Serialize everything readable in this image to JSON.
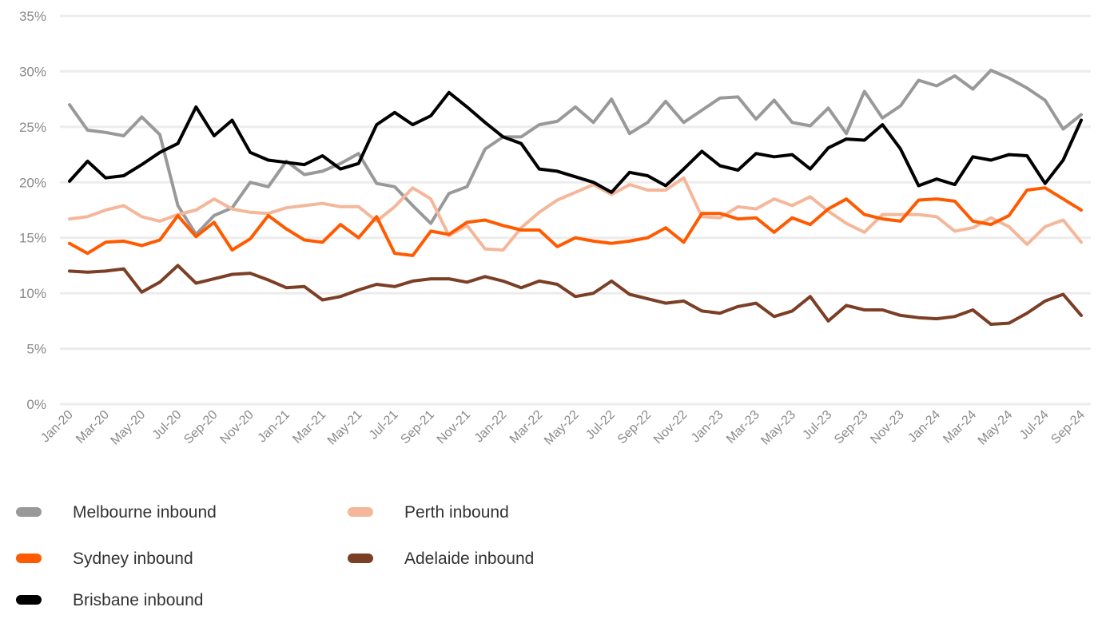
{
  "chart_data": {
    "type": "line",
    "title": "",
    "xlabel": "",
    "ylabel": "",
    "ylim": [
      0,
      35
    ],
    "yticks": [
      "0%",
      "5%",
      "10%",
      "15%",
      "20%",
      "25%",
      "30%",
      "35%"
    ],
    "grid": true,
    "legend_position": "bottom",
    "categories": [
      "Jan-20",
      "Feb-20",
      "Mar-20",
      "Apr-20",
      "May-20",
      "Jun-20",
      "Jul-20",
      "Aug-20",
      "Sep-20",
      "Oct-20",
      "Nov-20",
      "Dec-20",
      "Jan-21",
      "Feb-21",
      "Mar-21",
      "Apr-21",
      "May-21",
      "Jun-21",
      "Jul-21",
      "Aug-21",
      "Sep-21",
      "Oct-21",
      "Nov-21",
      "Dec-21",
      "Jan-22",
      "Feb-22",
      "Mar-22",
      "Apr-22",
      "May-22",
      "Jun-22",
      "Jul-22",
      "Aug-22",
      "Sep-22",
      "Oct-22",
      "Nov-22",
      "Dec-22",
      "Jan-23",
      "Feb-23",
      "Mar-23",
      "Apr-23",
      "May-23",
      "Jun-23",
      "Jul-23",
      "Aug-23",
      "Sep-23",
      "Oct-23",
      "Nov-23",
      "Dec-23",
      "Jan-24",
      "Feb-24",
      "Mar-24",
      "Apr-24",
      "May-24",
      "Jun-24",
      "Jul-24",
      "Aug-24",
      "Sep-24"
    ],
    "series": [
      {
        "name": "Melbourne inbound",
        "color": "#999999",
        "values": [
          27.0,
          24.7,
          24.5,
          24.2,
          25.9,
          24.3,
          17.9,
          15.3,
          17.0,
          17.7,
          20.0,
          19.6,
          21.9,
          20.7,
          21.0,
          21.7,
          22.6,
          19.9,
          19.6,
          17.9,
          16.3,
          19.0,
          19.6,
          23.0,
          24.1,
          24.1,
          25.2,
          25.5,
          26.8,
          25.4,
          27.5,
          24.4,
          25.4,
          27.3,
          25.4,
          26.5,
          27.6,
          27.7,
          25.7,
          27.4,
          25.4,
          25.1,
          26.7,
          24.4,
          28.2,
          25.8,
          26.9,
          29.2,
          28.7,
          29.6,
          28.4,
          30.1,
          29.4,
          28.5,
          27.4,
          24.8,
          26.1
        ]
      },
      {
        "name": "Perth inbound",
        "color": "#F4B79A",
        "values": [
          16.7,
          16.9,
          17.5,
          17.9,
          16.9,
          16.5,
          17.1,
          17.5,
          18.5,
          17.6,
          17.3,
          17.2,
          17.7,
          17.9,
          18.1,
          17.8,
          17.8,
          16.5,
          17.8,
          19.5,
          18.5,
          15.2,
          16.1,
          14.0,
          13.9,
          15.9,
          17.3,
          18.4,
          19.1,
          19.8,
          18.9,
          19.8,
          19.3,
          19.3,
          20.4,
          16.9,
          16.8,
          17.8,
          17.6,
          18.5,
          17.9,
          18.7,
          17.4,
          16.3,
          15.5,
          17.1,
          17.1,
          17.1,
          16.9,
          15.6,
          15.9,
          16.8,
          16.0,
          14.4,
          16.0,
          16.6,
          14.6
        ]
      },
      {
        "name": "Sydney inbound",
        "color": "#FF5A00",
        "values": [
          14.5,
          13.6,
          14.6,
          14.7,
          14.3,
          14.8,
          17.0,
          15.1,
          16.4,
          13.9,
          14.9,
          17.0,
          15.8,
          14.8,
          14.6,
          16.2,
          15.0,
          16.9,
          13.6,
          13.4,
          15.6,
          15.3,
          16.4,
          16.6,
          16.1,
          15.7,
          15.7,
          14.2,
          15.0,
          14.7,
          14.5,
          14.7,
          15.0,
          15.9,
          14.6,
          17.2,
          17.2,
          16.7,
          16.8,
          15.5,
          16.8,
          16.2,
          17.6,
          18.5,
          17.1,
          16.7,
          16.5,
          18.4,
          18.5,
          18.3,
          16.5,
          16.2,
          17.0,
          19.3,
          19.5,
          18.5,
          17.5
        ]
      },
      {
        "name": "Adelaide inbound",
        "color": "#7B3F25",
        "values": [
          12.0,
          11.9,
          12.0,
          12.2,
          10.1,
          11.0,
          12.5,
          10.9,
          11.3,
          11.7,
          11.8,
          11.2,
          10.5,
          10.6,
          9.4,
          9.7,
          10.3,
          10.8,
          10.6,
          11.1,
          11.3,
          11.3,
          11.0,
          11.5,
          11.1,
          10.5,
          11.1,
          10.8,
          9.7,
          10.0,
          11.1,
          9.9,
          9.5,
          9.1,
          9.3,
          8.4,
          8.2,
          8.8,
          9.1,
          7.9,
          8.4,
          9.7,
          7.5,
          8.9,
          8.5,
          8.5,
          8.0,
          7.8,
          7.7,
          7.9,
          8.5,
          7.2,
          7.3,
          8.2,
          9.3,
          9.9,
          8.0
        ]
      },
      {
        "name": "Brisbane inbound",
        "color": "#000000",
        "values": [
          20.1,
          21.9,
          20.4,
          20.6,
          21.6,
          22.7,
          23.5,
          26.8,
          24.2,
          25.6,
          22.7,
          22.0,
          21.8,
          21.6,
          22.4,
          21.2,
          21.7,
          25.2,
          26.3,
          25.2,
          26.0,
          28.1,
          26.8,
          25.4,
          24.1,
          23.5,
          21.2,
          21.0,
          20.5,
          20.0,
          19.1,
          20.9,
          20.6,
          19.7,
          21.2,
          22.8,
          21.5,
          21.1,
          22.6,
          22.3,
          22.5,
          21.2,
          23.1,
          23.9,
          23.8,
          25.2,
          23.0,
          19.7,
          20.3,
          19.8,
          22.3,
          22.0,
          22.5,
          22.4,
          19.9,
          22.0,
          25.6
        ]
      }
    ]
  }
}
